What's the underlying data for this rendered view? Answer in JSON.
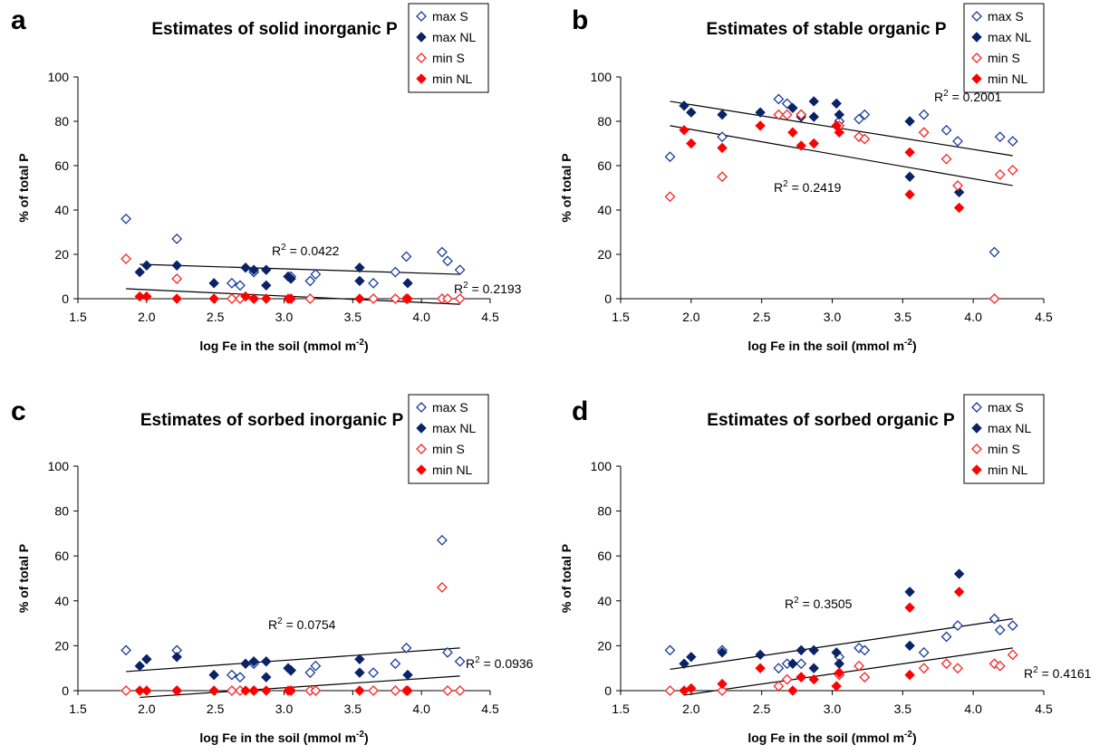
{
  "legend": {
    "max_s": "max S",
    "max_nl": "max NL",
    "min_s": "min S",
    "min_nl": "min NL"
  },
  "colors": {
    "max_s": "#1a3a9c",
    "max_nl": "#0a2366",
    "min_s": "#ff2020",
    "min_nl": "#ff0000",
    "trendline": "#000000"
  },
  "chart_data": [
    {
      "type": "scatter",
      "panel_letter": "a",
      "title": "Estimates of solid inorganic P",
      "xlabel": "log Fe in the soil (mmol m",
      "xlabel_sup": "-2",
      "xlabel_end": ")",
      "ylabel": "% of total P",
      "xlim": [
        1.5,
        4.5
      ],
      "ylim": [
        0,
        100
      ],
      "xticks": [
        "1.5",
        "2.0",
        "2.5",
        "3.0",
        "3.5",
        "4.0",
        "4.5"
      ],
      "yticks": [
        "0",
        "20",
        "40",
        "60",
        "80",
        "100"
      ],
      "legend_position": "top-right",
      "series": [
        {
          "name": "max S",
          "marker": "open",
          "x": [
            1.85,
            2.22,
            2.62,
            2.68,
            2.78,
            3.05,
            3.19,
            3.23,
            3.65,
            3.81,
            3.89,
            4.15,
            4.19,
            4.28
          ],
          "y": [
            36,
            27,
            7,
            6,
            12,
            10,
            8,
            11,
            7,
            12,
            19,
            21,
            17,
            13
          ]
        },
        {
          "name": "max NL",
          "marker": "filled",
          "x": [
            1.95,
            2.0,
            2.22,
            2.49,
            2.72,
            2.78,
            2.87,
            2.87,
            3.03,
            3.05,
            3.55,
            3.55,
            3.9
          ],
          "y": [
            12,
            15,
            15,
            7,
            14,
            13,
            13,
            6,
            10,
            9,
            14,
            8,
            7
          ]
        },
        {
          "name": "min S",
          "marker": "open",
          "x": [
            1.85,
            2.22,
            2.62,
            2.68,
            2.78,
            3.05,
            3.19,
            3.65,
            3.81,
            3.89,
            4.15,
            4.19,
            4.28
          ],
          "y": [
            18,
            9,
            0,
            0,
            0,
            0,
            0,
            0,
            0,
            0,
            0,
            0,
            0
          ]
        },
        {
          "name": "min NL",
          "marker": "filled",
          "x": [
            1.95,
            2.0,
            2.22,
            2.49,
            2.72,
            2.78,
            2.87,
            3.03,
            3.05,
            3.55,
            3.9
          ],
          "y": [
            1,
            1,
            0,
            0,
            1,
            0,
            0,
            0,
            0,
            0,
            0
          ]
        }
      ],
      "trendlines": [
        {
          "x": [
            1.95,
            4.28
          ],
          "y": [
            15.5,
            11.0
          ],
          "r2": "R",
          "r2_value": " = 0.0422"
        },
        {
          "x": [
            1.85,
            4.28
          ],
          "y": [
            4.5,
            -2.5
          ],
          "r2": "R",
          "r2_value": " = 0.2193"
        }
      ]
    },
    {
      "type": "scatter",
      "panel_letter": "b",
      "title": "Estimates of stable organic P",
      "xlabel": "log Fe in the soil (mmol m",
      "xlabel_sup": "-2",
      "xlabel_end": ")",
      "ylabel": "% of total P",
      "xlim": [
        1.5,
        4.5
      ],
      "ylim": [
        0,
        100
      ],
      "xticks": [
        "1.5",
        "2.0",
        "2.5",
        "3.0",
        "3.5",
        "4.0",
        "4.5"
      ],
      "yticks": [
        "0",
        "20",
        "40",
        "60",
        "80",
        "100"
      ],
      "legend_position": "top-right",
      "series": [
        {
          "name": "max S",
          "marker": "open",
          "x": [
            1.85,
            2.22,
            2.62,
            2.68,
            2.78,
            3.05,
            3.19,
            3.23,
            3.65,
            3.81,
            3.89,
            4.15,
            4.19,
            4.28
          ],
          "y": [
            64,
            73,
            90,
            88,
            83,
            80,
            81,
            83,
            83,
            76,
            71,
            21,
            73,
            71
          ]
        },
        {
          "name": "max NL",
          "marker": "filled",
          "x": [
            1.95,
            2.0,
            2.22,
            2.49,
            2.72,
            2.78,
            2.87,
            2.87,
            3.03,
            3.05,
            3.55,
            3.55,
            3.9
          ],
          "y": [
            87,
            84,
            83,
            84,
            86,
            82,
            89,
            82,
            88,
            83,
            80,
            55,
            48
          ]
        },
        {
          "name": "min S",
          "marker": "open",
          "x": [
            1.85,
            2.22,
            2.62,
            2.68,
            2.78,
            3.05,
            3.19,
            3.23,
            3.65,
            3.81,
            3.89,
            4.15,
            4.19,
            4.28
          ],
          "y": [
            46,
            55,
            83,
            83,
            83,
            78,
            73,
            72,
            75,
            63,
            51,
            0,
            56,
            58
          ]
        },
        {
          "name": "min NL",
          "marker": "filled",
          "x": [
            1.95,
            2.0,
            2.22,
            2.49,
            2.72,
            2.78,
            2.87,
            3.03,
            3.05,
            3.55,
            3.55,
            3.9
          ],
          "y": [
            76,
            70,
            68,
            78,
            75,
            69,
            70,
            78,
            75,
            66,
            47,
            41
          ]
        }
      ],
      "trendlines": [
        {
          "x": [
            1.85,
            4.28
          ],
          "y": [
            89,
            64.5
          ],
          "r2": "R",
          "r2_value": " = 0.2001"
        },
        {
          "x": [
            1.85,
            4.28
          ],
          "y": [
            78,
            51
          ],
          "r2": "R",
          "r2_value": " = 0.2419"
        }
      ]
    },
    {
      "type": "scatter",
      "panel_letter": "c",
      "title": "Estimates of sorbed inorganic P",
      "xlabel": "log Fe in the soil (mmol m",
      "xlabel_sup": "-2",
      "xlabel_end": ")",
      "ylabel": "% of total P",
      "xlim": [
        1.5,
        4.5
      ],
      "ylim": [
        0,
        100
      ],
      "xticks": [
        "1.5",
        "2.0",
        "2.5",
        "3.0",
        "3.5",
        "4.0",
        "4.5"
      ],
      "yticks": [
        "0",
        "20",
        "40",
        "60",
        "80",
        "100"
      ],
      "legend_position": "top-right",
      "series": [
        {
          "name": "max S",
          "marker": "open",
          "x": [
            1.85,
            2.22,
            2.62,
            2.68,
            2.78,
            3.05,
            3.19,
            3.23,
            3.65,
            3.81,
            3.89,
            4.15,
            4.19,
            4.28
          ],
          "y": [
            18,
            18,
            7,
            6,
            12,
            9,
            8,
            11,
            8,
            12,
            19,
            67,
            17,
            13
          ]
        },
        {
          "name": "max NL",
          "marker": "filled",
          "x": [
            1.95,
            2.0,
            2.22,
            2.49,
            2.72,
            2.78,
            2.87,
            2.87,
            3.03,
            3.05,
            3.55,
            3.55,
            3.9
          ],
          "y": [
            11,
            14,
            15,
            7,
            12,
            13,
            13,
            6,
            10,
            9,
            14,
            8,
            7
          ]
        },
        {
          "name": "min S",
          "marker": "open",
          "x": [
            1.85,
            2.22,
            2.62,
            2.68,
            2.78,
            3.05,
            3.19,
            3.23,
            3.65,
            3.81,
            3.89,
            4.15,
            4.19,
            4.28
          ],
          "y": [
            0,
            0,
            0,
            0,
            0,
            0,
            0,
            0,
            0,
            0,
            0,
            46,
            0,
            0
          ]
        },
        {
          "name": "min NL",
          "marker": "filled",
          "x": [
            1.95,
            2.0,
            2.22,
            2.49,
            2.72,
            2.78,
            2.87,
            3.03,
            3.05,
            3.55,
            3.9
          ],
          "y": [
            0,
            0,
            0,
            0,
            0,
            0,
            0,
            0,
            0,
            0,
            0
          ]
        }
      ],
      "trendlines": [
        {
          "x": [
            1.85,
            4.28
          ],
          "y": [
            8.5,
            19
          ],
          "r2": "R",
          "r2_value": " = 0.0754"
        },
        {
          "x": [
            1.95,
            4.28
          ],
          "y": [
            -3,
            6.5
          ],
          "r2": "R",
          "r2_value": " = 0.0936"
        }
      ]
    },
    {
      "type": "scatter",
      "panel_letter": "d",
      "title": "Estimates of sorbed organic P",
      "xlabel": "log Fe in the soil (mmol m",
      "xlabel_sup": "-2",
      "xlabel_end": ")",
      "ylabel": "% of total P",
      "xlim": [
        1.5,
        4.5
      ],
      "ylim": [
        0,
        100
      ],
      "xticks": [
        "1.5",
        "2.0",
        "2.5",
        "3.0",
        "3.5",
        "4.0",
        "4.5"
      ],
      "yticks": [
        "0",
        "20",
        "40",
        "60",
        "80",
        "100"
      ],
      "legend_position": "top-right",
      "series": [
        {
          "name": "max S",
          "marker": "open",
          "x": [
            1.85,
            2.22,
            2.62,
            2.68,
            2.78,
            3.05,
            3.19,
            3.23,
            3.65,
            3.81,
            3.89,
            4.15,
            4.19,
            4.28
          ],
          "y": [
            18,
            18,
            10,
            12,
            12,
            15,
            19,
            18,
            17,
            24,
            29,
            32,
            27,
            29
          ]
        },
        {
          "name": "max NL",
          "marker": "filled",
          "x": [
            1.95,
            2.0,
            2.22,
            2.49,
            2.72,
            2.78,
            2.87,
            2.87,
            3.03,
            3.05,
            3.55,
            3.55,
            3.9
          ],
          "y": [
            12,
            15,
            17,
            16,
            12,
            18,
            18,
            10,
            17,
            12,
            44,
            20,
            52
          ]
        },
        {
          "name": "min S",
          "marker": "open",
          "x": [
            1.85,
            2.22,
            2.62,
            2.68,
            2.78,
            3.05,
            3.19,
            3.23,
            3.65,
            3.81,
            3.89,
            4.15,
            4.19,
            4.28
          ],
          "y": [
            0,
            0,
            2,
            5,
            6,
            7,
            11,
            6,
            10,
            12,
            10,
            12,
            11,
            16
          ]
        },
        {
          "name": "min NL",
          "marker": "filled",
          "x": [
            1.95,
            2.0,
            2.22,
            2.49,
            2.72,
            2.78,
            2.87,
            3.03,
            3.05,
            3.55,
            3.55,
            3.9
          ],
          "y": [
            0,
            1,
            3,
            10,
            0,
            6,
            5,
            2,
            8,
            37,
            7,
            44
          ]
        }
      ],
      "trendlines": [
        {
          "x": [
            1.85,
            4.28
          ],
          "y": [
            9.5,
            32
          ],
          "r2": "R",
          "r2_value": " = 0.3505"
        },
        {
          "x": [
            1.95,
            4.28
          ],
          "y": [
            -2,
            19
          ],
          "r2": "R",
          "r2_value": " = 0.4161"
        }
      ]
    }
  ]
}
